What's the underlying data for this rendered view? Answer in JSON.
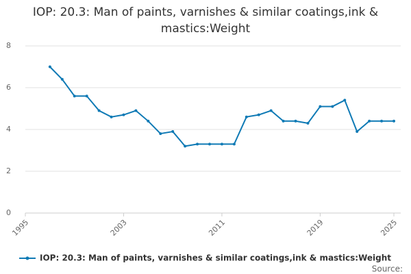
{
  "chart_data": {
    "type": "line",
    "title": "IOP: 20.3: Man of paints, varnishes & similar coatings,ink & mastics:Weight",
    "x": [
      1997,
      1998,
      1999,
      2000,
      2001,
      2002,
      2003,
      2004,
      2005,
      2006,
      2007,
      2008,
      2009,
      2010,
      2011,
      2012,
      2013,
      2014,
      2015,
      2016,
      2017,
      2018,
      2019,
      2020,
      2021,
      2022,
      2023,
      2024,
      2025
    ],
    "series": [
      {
        "name": "IOP: 20.3: Man of paints, varnishes & similar coatings,ink & mastics:Weight",
        "color": "#0f7ab5",
        "values": [
          7.0,
          6.4,
          5.6,
          5.6,
          4.9,
          4.6,
          4.7,
          4.9,
          4.4,
          3.8,
          3.9,
          3.2,
          3.3,
          3.3,
          3.3,
          3.3,
          4.6,
          4.7,
          4.9,
          4.4,
          4.4,
          4.3,
          5.1,
          5.1,
          5.4,
          3.9,
          4.4,
          4.4,
          4.4
        ]
      }
    ],
    "xlim": [
      1995,
      2025
    ],
    "xticks": [
      1995,
      2003,
      2011,
      2019,
      2025
    ],
    "ylim": [
      0,
      8
    ],
    "yticks": [
      0,
      2,
      4,
      6,
      8
    ],
    "grid": true,
    "source": "Source:"
  }
}
